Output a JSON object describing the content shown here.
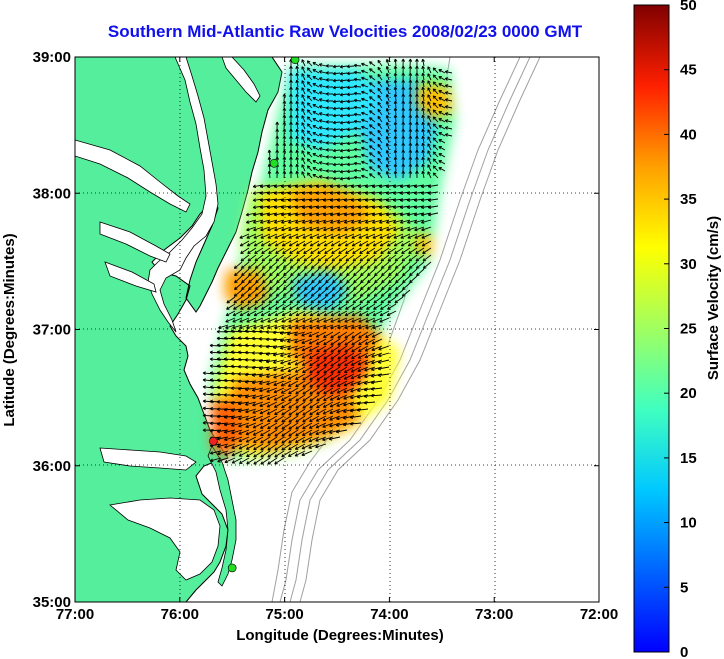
{
  "title": "Southern Mid-Atlantic Raw Velocities 2008/02/23 0000 GMT",
  "axes": {
    "xlabel": "Longitude (Degrees:Minutes)",
    "ylabel": "Latitude (Degrees:Minutes)",
    "x_ticks": [
      "77:00",
      "76:00",
      "75:00",
      "74:00",
      "73:00",
      "72:00"
    ],
    "y_ticks": [
      "39:00",
      "38:00",
      "37:00",
      "36:00",
      "35:00"
    ],
    "x_range_deg": [
      -77,
      -72
    ],
    "y_range_deg": [
      35,
      39
    ],
    "grid": "dotted"
  },
  "colorbar": {
    "label": "Surface Velocity (cm/s)",
    "ticks": [
      "0",
      "5",
      "10",
      "15",
      "20",
      "25",
      "30",
      "35",
      "40",
      "45",
      "50"
    ],
    "range": [
      0,
      50
    ],
    "colormap": "jet"
  },
  "colors": {
    "land": "#55ee9c",
    "coastline": "#000000",
    "title": "#1010ee",
    "bathymetry": "#a0a0a0",
    "station": "#22dd22",
    "station_alt": "#ee2222"
  },
  "stations": [
    {
      "lon": -74.9,
      "lat": 38.98,
      "color": "green"
    },
    {
      "lon": -75.1,
      "lat": 38.22,
      "color": "green"
    },
    {
      "lon": -75.68,
      "lat": 36.18,
      "color": "red"
    },
    {
      "lon": -75.5,
      "lat": 35.25,
      "color": "green"
    }
  ]
}
